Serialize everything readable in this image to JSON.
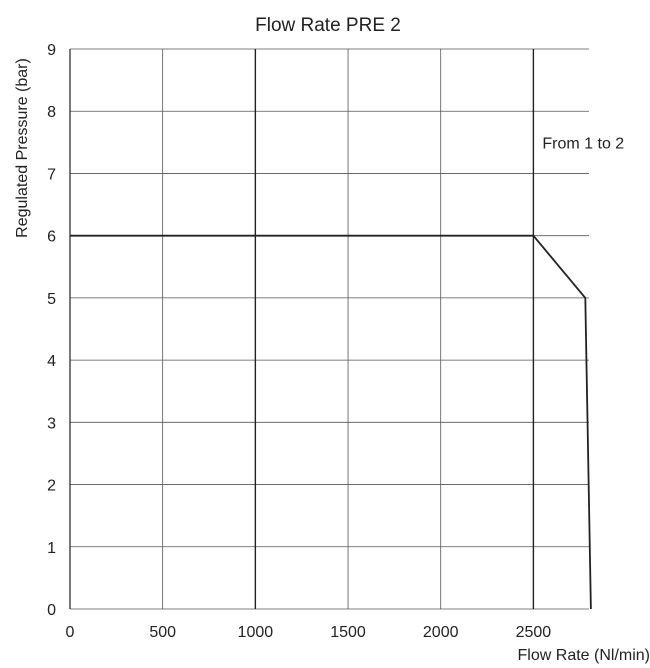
{
  "chart_data": {
    "type": "line",
    "title": "Flow Rate PRE 2",
    "xlabel": "Flow Rate (Nl/min)",
    "ylabel": "Regulated Pressure (bar)",
    "xlim": [
      0,
      2800
    ],
    "ylim": [
      0,
      9
    ],
    "x_ticks": [
      0,
      500,
      1000,
      1500,
      2000,
      2500
    ],
    "y_ticks": [
      0,
      1,
      2,
      3,
      4,
      5,
      6,
      7,
      8,
      9
    ],
    "grid": true,
    "major_x_lines": [
      1000,
      2500
    ],
    "series": [
      {
        "points": [
          {
            "x": 0,
            "y": 6
          },
          {
            "x": 2500,
            "y": 6
          },
          {
            "x": 2780,
            "y": 5
          },
          {
            "x": 2810,
            "y": 0
          }
        ]
      }
    ],
    "annotations": [
      {
        "text": "From 1 to 2",
        "x": 2500,
        "y": 7.5
      }
    ],
    "colors": {
      "grid": "#555555",
      "line": "#222222",
      "text": "#222222"
    }
  }
}
